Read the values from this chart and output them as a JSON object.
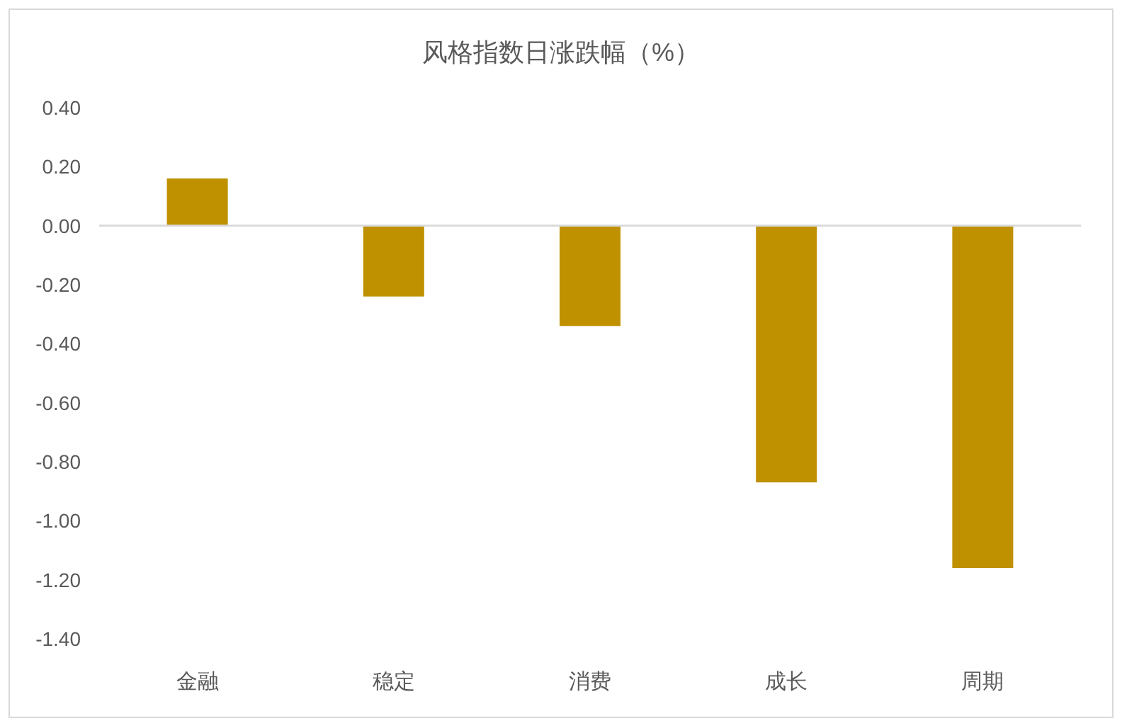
{
  "chart_data": {
    "type": "bar",
    "title": "风格指数日涨跌幅（%）",
    "categories": [
      "金融",
      "稳定",
      "消费",
      "成长",
      "周期"
    ],
    "values": [
      0.16,
      -0.24,
      -0.34,
      -0.87,
      -1.16
    ],
    "color": "#bf9000",
    "ylim": [
      -1.4,
      0.4
    ],
    "yticks": [
      {
        "value": 0.4,
        "label": "0.40"
      },
      {
        "value": 0.2,
        "label": "0.20"
      },
      {
        "value": 0,
        "label": "0.00"
      },
      {
        "value": -0.2,
        "label": "-0.20"
      },
      {
        "value": -0.4,
        "label": "-0.40"
      },
      {
        "value": -0.6,
        "label": "-0.60"
      },
      {
        "value": -0.8,
        "label": "-0.80"
      },
      {
        "value": -1.0,
        "label": "-1.00"
      },
      {
        "value": -1.2,
        "label": "-1.20"
      },
      {
        "value": -1.4,
        "label": "-1.40"
      }
    ],
    "relative": false
  }
}
